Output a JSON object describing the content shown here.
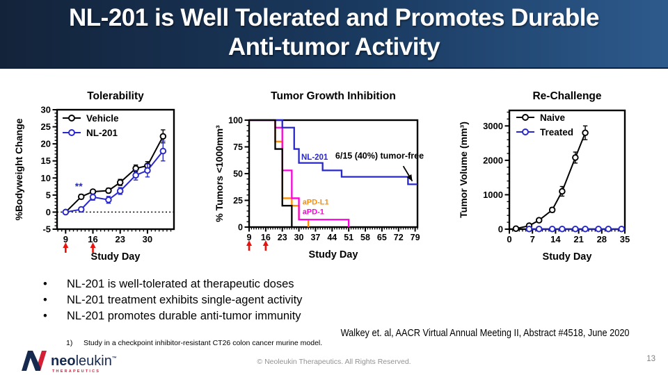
{
  "slide": {
    "title_line1": "NL-201 is Well Tolerated and Promotes Durable",
    "title_line2": "Anti-tumor Activity",
    "bullets": [
      "NL-201 is well-tolerated at therapeutic doses",
      "NL-201 treatment exhibits single-agent activity",
      "NL-201 promotes durable anti-tumor immunity"
    ],
    "bullet_char": "•",
    "citation": "Walkey et. al, AACR Virtual Annual Meeting II, Abstract #4518, June 2020",
    "footnote_number": "1)",
    "footnote_text": "Study in a checkpoint inhibitor-resistant CT26 colon cancer murine model.",
    "copyright": "© Neoleukin Therapeutics. All Rights Reserved.",
    "page_number": "13",
    "logo": {
      "brand_bold": "neo",
      "brand_light": "leukin",
      "tm": "™",
      "subtext": "THERAPEUTICS"
    }
  },
  "colors": {
    "titlebar_left": "#13233a",
    "titlebar_right": "#2d5a8c",
    "series_blue": "#2727cc",
    "series_black": "#000000",
    "series_magenta": "#ff00dd",
    "series_orange": "#ff8c00",
    "dose_arrow_red": "#e8130c",
    "logo_navy": "#16294e",
    "logo_red": "#d51f35"
  },
  "chart_data": [
    {
      "type": "line",
      "title": "Tolerability",
      "xlabel": "Study Day",
      "ylabel": "%Bodyweight Change",
      "xlim": [
        6.8,
        36.8
      ],
      "ylim": [
        -5,
        30
      ],
      "xticks": [
        9,
        16,
        23,
        30
      ],
      "yticks": [
        -5,
        0,
        5,
        10,
        15,
        20,
        25,
        30
      ],
      "zero_line": true,
      "dose_arrows_x": [
        9,
        16
      ],
      "dose_arrow_color": "#e8130c",
      "legend_items": [
        {
          "label": "Vehicle",
          "color": "#000000"
        },
        {
          "label": "NL-201",
          "color": "#2727cc"
        }
      ],
      "series": [
        {
          "name": "Vehicle",
          "color": "#000000",
          "x": [
            9,
            13,
            16,
            20,
            23,
            27,
            30,
            34
          ],
          "y": [
            0,
            4.5,
            6.0,
            6.3,
            8.7,
            12.8,
            13.6,
            22.2
          ],
          "err": [
            0.4,
            0.7,
            0.6,
            0.7,
            0.9,
            1.0,
            1.2,
            1.9
          ]
        },
        {
          "name": "NL-201",
          "color": "#2727cc",
          "x": [
            9,
            13,
            16,
            20,
            23,
            27,
            30,
            34
          ],
          "y": [
            0,
            0.8,
            4.4,
            3.6,
            6.2,
            10.8,
            12.2,
            17.9
          ],
          "err": [
            0.4,
            0.6,
            0.9,
            1.0,
            1.0,
            1.4,
            1.9,
            2.9
          ]
        }
      ],
      "annotations": [
        {
          "text": "**",
          "x": 11.4,
          "y": 6.6,
          "color": "#2727cc",
          "size": 14,
          "anchor": "start"
        }
      ]
    },
    {
      "type": "step",
      "title": "Tumor Growth Inhibition",
      "xlabel": "Study Day",
      "ylabel": "% Tumors <1000mm³",
      "xlim": [
        9,
        80
      ],
      "ylim": [
        0,
        100
      ],
      "xticks": [
        9,
        16,
        23,
        30,
        37,
        44,
        51,
        58,
        65,
        72,
        79
      ],
      "yticks": [
        0,
        25,
        50,
        75,
        100
      ],
      "dose_arrows_x": [
        9,
        16
      ],
      "dose_arrow_color": "#e8130c",
      "series": [
        {
          "name": "aPD-L1",
          "color": "#ff8c00",
          "points": [
            [
              9,
              100
            ],
            [
              20,
              100
            ],
            [
              20,
              80
            ],
            [
              23,
              80
            ],
            [
              23,
              27
            ],
            [
              27,
              27
            ],
            [
              27,
              20
            ],
            [
              30,
              20
            ],
            [
              30,
              7
            ],
            [
              34,
              7
            ],
            [
              34,
              0
            ]
          ]
        },
        {
          "name": "aPD-1",
          "color": "#ff00dd",
          "points": [
            [
              9,
              100
            ],
            [
              20,
              100
            ],
            [
              20,
              93
            ],
            [
              23,
              93
            ],
            [
              23,
              53
            ],
            [
              27,
              53
            ],
            [
              27,
              27
            ],
            [
              30,
              27
            ],
            [
              30,
              7
            ],
            [
              51,
              7
            ],
            [
              51,
              0
            ]
          ]
        },
        {
          "name": "NL-201",
          "color": "#2727cc",
          "points": [
            [
              9,
              100
            ],
            [
              23,
              100
            ],
            [
              23,
              93
            ],
            [
              28,
              93
            ],
            [
              28,
              73
            ],
            [
              30,
              73
            ],
            [
              30,
              60
            ],
            [
              40,
              60
            ],
            [
              40,
              53
            ],
            [
              48,
              53
            ],
            [
              48,
              47
            ],
            [
              76,
              47
            ],
            [
              76,
              40
            ],
            [
              80,
              40
            ]
          ]
        },
        {
          "name": "Vehicle",
          "color": "#000000",
          "points": [
            [
              9,
              100
            ],
            [
              20,
              100
            ],
            [
              20,
              73
            ],
            [
              23,
              73
            ],
            [
              23,
              20
            ],
            [
              27,
              20
            ],
            [
              27,
              0
            ]
          ]
        }
      ],
      "annotations": [
        {
          "text": "NL-201",
          "x": 31,
          "y": 63,
          "color": "#2727cc",
          "size": 11.5,
          "anchor": "start"
        },
        {
          "text": "aPD-L1",
          "x": 31.5,
          "y": 21,
          "color": "#ff8c00",
          "size": 11,
          "anchor": "start"
        },
        {
          "text": "aPD-1",
          "x": 31.5,
          "y": 12,
          "color": "#ff00dd",
          "size": 11,
          "anchor": "start"
        },
        {
          "text": "6/15 (40%) tumor-free",
          "x": 64,
          "y": 64,
          "color": "#000000",
          "size": 12.5,
          "anchor": "middle"
        }
      ],
      "arrow": {
        "from": [
          74,
          57
        ],
        "to": [
          77.8,
          43
        ]
      }
    },
    {
      "type": "line",
      "title": "Re-Challenge",
      "xlabel": "Study Day",
      "ylabel": "Tumor Volume (mm³)",
      "xlim": [
        0,
        35
      ],
      "ylim": [
        0,
        3450
      ],
      "xticks": [
        0,
        7,
        14,
        21,
        28,
        35
      ],
      "yticks": [
        0,
        1000,
        2000,
        3000
      ],
      "legend_items": [
        {
          "label": "Naive",
          "color": "#000000"
        },
        {
          "label": "Treated",
          "color": "#2727cc"
        }
      ],
      "series": [
        {
          "name": "Naive",
          "color": "#000000",
          "x": [
            2,
            6,
            9,
            13,
            16,
            20,
            23
          ],
          "y": [
            15,
            100,
            260,
            560,
            1100,
            2080,
            2800
          ],
          "err": [
            0,
            40,
            60,
            70,
            140,
            160,
            200
          ]
        },
        {
          "name": "Treated",
          "color": "#2727cc",
          "x": [
            6,
            9,
            13,
            16,
            20,
            23,
            27,
            30,
            34
          ],
          "y": [
            5,
            5,
            5,
            5,
            5,
            5,
            5,
            5,
            5
          ],
          "err": [
            0,
            0,
            0,
            0,
            0,
            0,
            0,
            0,
            0
          ]
        }
      ]
    }
  ]
}
